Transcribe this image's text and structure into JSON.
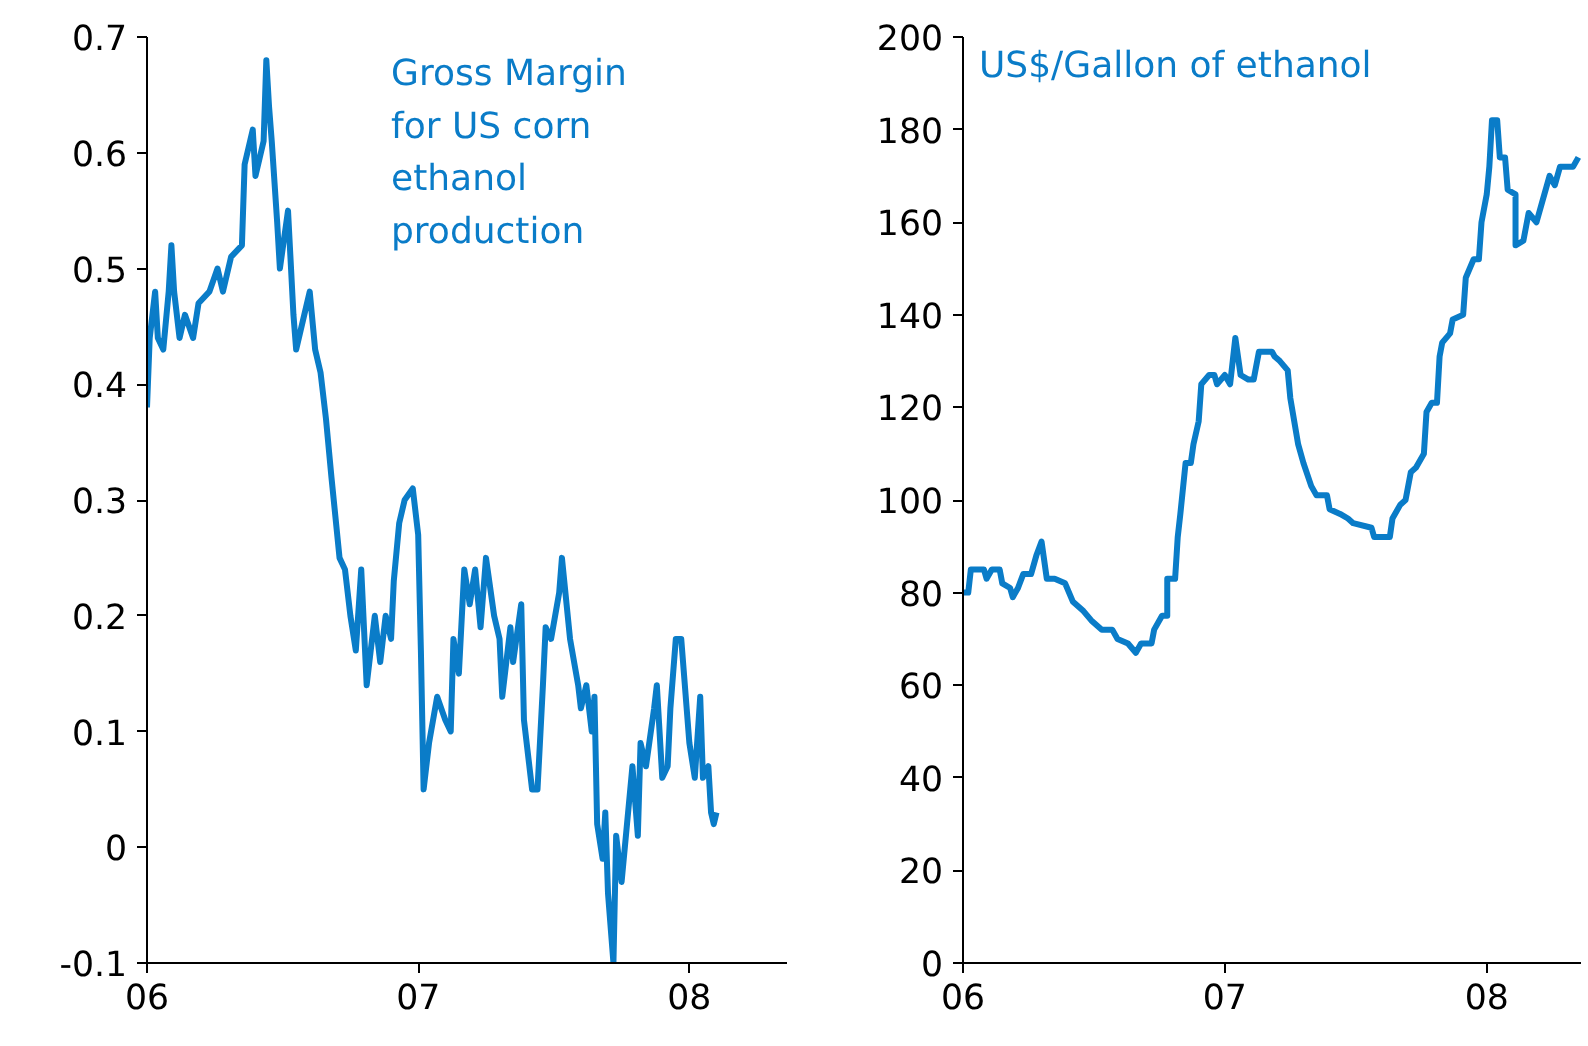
{
  "chart_data": [
    {
      "type": "line",
      "title": "Gross Margin\nfor US corn\nethanol\nproduction",
      "grid": false,
      "xlim": [
        2006,
        2008.36
      ],
      "ylim": [
        -0.1,
        0.7
      ],
      "xticks": [
        {
          "value": 2006,
          "label": "06"
        },
        {
          "value": 2007,
          "label": "07"
        },
        {
          "value": 2008,
          "label": "08"
        }
      ],
      "yticks": [
        {
          "value": -0.1,
          "label": "-0.1"
        },
        0,
        0.1,
        0.2,
        0.3,
        0.4,
        0.5,
        0.6,
        0.7
      ],
      "series": [
        {
          "color": "#0a7cc8",
          "x": [
            2006.0,
            2006.01,
            2006.03,
            2006.04,
            2006.06,
            2006.08,
            2006.09,
            2006.1,
            2006.12,
            2006.14,
            2006.17,
            2006.19,
            2006.23,
            2006.26,
            2006.28,
            2006.31,
            2006.35,
            2006.36,
            2006.39,
            2006.4,
            2006.43,
            2006.44,
            2006.45,
            2006.46,
            2006.48,
            2006.49,
            2006.52,
            2006.54,
            2006.55,
            2006.58,
            2006.6,
            2006.62,
            2006.64,
            2006.66,
            2006.68,
            2006.71,
            2006.73,
            2006.75,
            2006.77,
            2006.79,
            2006.81,
            2006.84,
            2006.86,
            2006.88,
            2006.9,
            2006.91,
            2006.93,
            2006.95,
            2006.98,
            2007.0,
            2007.01,
            2007.02,
            2007.04,
            2007.07,
            2007.1,
            2007.12,
            2007.13,
            2007.15,
            2007.17,
            2007.19,
            2007.21,
            2007.23,
            2007.25,
            2007.28,
            2007.3,
            2007.31,
            2007.34,
            2007.35,
            2007.38,
            2007.39,
            2007.42,
            2007.44,
            2007.46,
            2007.47,
            2007.49,
            2007.52,
            2007.53,
            2007.56,
            2007.59,
            2007.6,
            2007.62,
            2007.64,
            2007.65,
            2007.66,
            2007.68,
            2007.69,
            2007.7,
            2007.72,
            2007.73,
            2007.75,
            2007.77,
            2007.79,
            2007.81,
            2007.82,
            2007.84,
            2007.87,
            2007.88,
            2007.9,
            2007.92,
            2007.93,
            2007.95,
            2007.97,
            2008.0,
            2008.02,
            2008.04,
            2008.05,
            2008.07,
            2008.08,
            2008.09,
            2008.1
          ],
          "values": [
            0.38,
            0.44,
            0.48,
            0.44,
            0.43,
            0.48,
            0.52,
            0.48,
            0.44,
            0.46,
            0.44,
            0.47,
            0.48,
            0.5,
            0.48,
            0.51,
            0.52,
            0.59,
            0.62,
            0.58,
            0.61,
            0.68,
            0.64,
            0.61,
            0.54,
            0.5,
            0.55,
            0.46,
            0.43,
            0.46,
            0.48,
            0.43,
            0.41,
            0.37,
            0.32,
            0.25,
            0.24,
            0.2,
            0.17,
            0.24,
            0.14,
            0.2,
            0.16,
            0.2,
            0.18,
            0.23,
            0.28,
            0.3,
            0.31,
            0.27,
            0.17,
            0.05,
            0.09,
            0.13,
            0.11,
            0.1,
            0.18,
            0.15,
            0.24,
            0.21,
            0.24,
            0.19,
            0.25,
            0.2,
            0.18,
            0.13,
            0.19,
            0.16,
            0.21,
            0.11,
            0.05,
            0.05,
            0.14,
            0.19,
            0.18,
            0.22,
            0.25,
            0.18,
            0.14,
            0.12,
            0.14,
            0.1,
            0.13,
            0.02,
            -0.01,
            0.03,
            -0.04,
            -0.1,
            0.01,
            -0.03,
            0.02,
            0.07,
            0.01,
            0.09,
            0.07,
            0.12,
            0.14,
            0.06,
            0.07,
            0.12,
            0.18,
            0.18,
            0.09,
            0.06,
            0.13,
            0.06,
            0.07,
            0.03,
            0.02,
            0.03
          ]
        }
      ]
    },
    {
      "type": "line",
      "title": "US$/Gallon of ethanol",
      "grid": false,
      "xlim": [
        2006,
        2008.36
      ],
      "ylim": [
        0,
        200
      ],
      "xticks": [
        {
          "value": 2006,
          "label": "06"
        },
        {
          "value": 2007,
          "label": "07"
        },
        {
          "value": 2008,
          "label": "08"
        }
      ],
      "yticks": [
        0,
        20,
        40,
        60,
        80,
        100,
        120,
        140,
        160,
        180,
        200
      ],
      "series": [
        {
          "color": "#0a7cc8",
          "x": [
            2006.0,
            2006.02,
            2006.03,
            2006.08,
            2006.09,
            2006.11,
            2006.14,
            2006.15,
            2006.18,
            2006.19,
            2006.21,
            2006.23,
            2006.26,
            2006.28,
            2006.3,
            2006.32,
            2006.35,
            2006.39,
            2006.42,
            2006.46,
            2006.49,
            2006.53,
            2006.57,
            2006.59,
            2006.63,
            2006.66,
            2006.68,
            2006.72,
            2006.73,
            2006.76,
            2006.78,
            2006.78,
            2006.81,
            2006.82,
            2006.83,
            2006.85,
            2006.87,
            2006.88,
            2006.9,
            2006.91,
            2006.94,
            2006.96,
            2006.97,
            2007.0,
            2007.02,
            2007.04,
            2007.06,
            2007.09,
            2007.11,
            2007.13,
            2007.18,
            2007.19,
            2007.21,
            2007.24,
            2007.25,
            2007.28,
            2007.3,
            2007.33,
            2007.35,
            2007.39,
            2007.4,
            2007.44,
            2007.47,
            2007.49,
            2007.56,
            2007.57,
            2007.63,
            2007.64,
            2007.67,
            2007.69,
            2007.71,
            2007.73,
            2007.76,
            2007.77,
            2007.79,
            2007.81,
            2007.82,
            2007.83,
            2007.86,
            2007.87,
            2007.91,
            2007.92,
            2007.95,
            2007.97,
            2007.98,
            2008.0,
            2008.01,
            2008.02,
            2008.04,
            2008.05,
            2008.07,
            2008.08,
            2008.11,
            2008.11,
            2008.14,
            2008.16,
            2008.19,
            2008.21,
            2008.24,
            2008.26,
            2008.28,
            2008.33,
            2008.35
          ],
          "values": [
            80,
            80,
            85,
            85,
            83,
            85,
            85,
            82,
            81,
            79,
            81,
            84,
            84,
            88,
            91,
            83,
            83,
            82,
            78,
            76,
            74,
            72,
            72,
            70,
            69,
            67,
            69,
            69,
            72,
            75,
            75,
            83,
            83,
            92,
            97,
            108,
            108,
            112,
            117,
            125,
            127,
            127,
            125,
            127,
            125,
            135,
            127,
            126,
            126,
            132,
            132,
            131,
            130,
            128,
            122,
            112,
            108,
            103,
            101,
            101,
            98,
            97,
            96,
            95,
            94,
            92,
            92,
            96,
            99,
            100,
            106,
            107,
            110,
            119,
            121,
            121,
            131,
            134,
            136,
            139,
            140,
            148,
            152,
            152,
            160,
            166,
            172,
            182,
            182,
            174,
            174,
            167,
            166,
            155,
            156,
            162,
            160,
            164,
            170,
            168,
            172,
            172,
            174
          ]
        }
      ]
    }
  ]
}
